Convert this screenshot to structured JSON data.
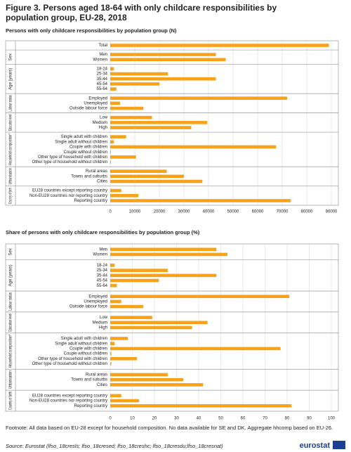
{
  "title": "Figure 3. Persons aged 18-64 with only childcare responsibilities by population group, EU-28, 2018",
  "chart_data": [
    {
      "type": "bar",
      "orientation": "horizontal",
      "title": "Persons with only childcare responsibilities by population group (N)",
      "color": "#f7a21b",
      "grid": true,
      "xlim": [
        0,
        90000
      ],
      "xticks": [
        0,
        10000,
        20000,
        30000,
        40000,
        50000,
        60000,
        70000,
        80000,
        90000
      ],
      "groups": [
        {
          "categories": [
            "Total"
          ],
          "values": [
            89000
          ]
        },
        {
          "name": "Sex",
          "categories": [
            "Men",
            "Women"
          ],
          "values": [
            43000,
            47000
          ]
        },
        {
          "name": "Age (years)",
          "categories": [
            "18-24",
            "25-34",
            "35-44",
            "45-54",
            "55-64"
          ],
          "values": [
            1500,
            23500,
            43000,
            20000,
            2500
          ]
        },
        {
          "name": "Labour status",
          "categories": [
            "Employed",
            "Unemployed",
            "Outside labour force"
          ],
          "values": [
            72000,
            4000,
            13500
          ]
        },
        {
          "name": "Education level",
          "categories": [
            "Low",
            "Medium",
            "High"
          ],
          "values": [
            17000,
            39500,
            33000
          ]
        },
        {
          "name": "Household composition*",
          "categories": [
            "Single adult with children",
            "Single adult without children",
            "Couple with children",
            "Couple without children",
            "Other type of household with children",
            "Other type of household without children"
          ],
          "values": [
            6500,
            1500,
            67500,
            300,
            10500,
            300
          ]
        },
        {
          "name": "Urbanisation",
          "categories": [
            "Rural areas",
            "Towns and suburbs",
            "Cities"
          ],
          "values": [
            23000,
            30000,
            37500
          ]
        },
        {
          "name": "Country of birth",
          "categories": [
            "EU28 countries except reporting country",
            "Non-EU28 countries nor reporting country",
            "Reporting country"
          ],
          "values": [
            4500,
            11500,
            73500
          ]
        }
      ]
    },
    {
      "type": "bar",
      "orientation": "horizontal",
      "title": "Share of persons with only childcare responsibilities by population group (%)",
      "color": "#f7a21b",
      "grid": true,
      "xlim": [
        0,
        100
      ],
      "xticks": [
        0,
        10,
        20,
        30,
        40,
        50,
        60,
        70,
        80,
        90,
        100
      ],
      "groups": [
        {
          "name": "Sex",
          "categories": [
            "Men",
            "Women"
          ],
          "values": [
            48,
            53
          ]
        },
        {
          "name": "Age (years)",
          "categories": [
            "18-24",
            "25-34",
            "35-44",
            "45-54",
            "55-64"
          ],
          "values": [
            2,
            26,
            48,
            22,
            3
          ]
        },
        {
          "name": "Labour status",
          "categories": [
            "Employed",
            "Unemployed",
            "Outside labour force"
          ],
          "values": [
            81,
            5,
            15
          ]
        },
        {
          "name": "Education level",
          "categories": [
            "Low",
            "Medium",
            "High"
          ],
          "values": [
            19,
            44,
            37
          ]
        },
        {
          "name": "Household composition*",
          "categories": [
            "Single adult with children",
            "Single adult without children",
            "Couple with children",
            "Couple without children",
            "Other type of household with children",
            "Other type of household without children"
          ],
          "values": [
            8,
            2,
            77,
            0.5,
            12,
            0.5
          ]
        },
        {
          "name": "Urbanisation",
          "categories": [
            "Rural areas",
            "Towns and suburbs",
            "Cities"
          ],
          "values": [
            26,
            33,
            42
          ]
        },
        {
          "name": "Country of birth",
          "categories": [
            "EU28 countries except reporting country",
            "Non-EU28 countries nor reporting country",
            "Reporting country"
          ],
          "values": [
            5,
            13,
            82
          ]
        }
      ]
    }
  ],
  "footnote": "Footnote: All data based on EU-28 except for household composition. No data available for SE and DK. Aggregate hhcomp based on EU-26.",
  "source": "Source: Eurostat (lfso_18cresls; lfso_18cresed; lfso_18creshc; lfso_18cresdu;lfso_18cresnat)",
  "logo": "eurostat"
}
